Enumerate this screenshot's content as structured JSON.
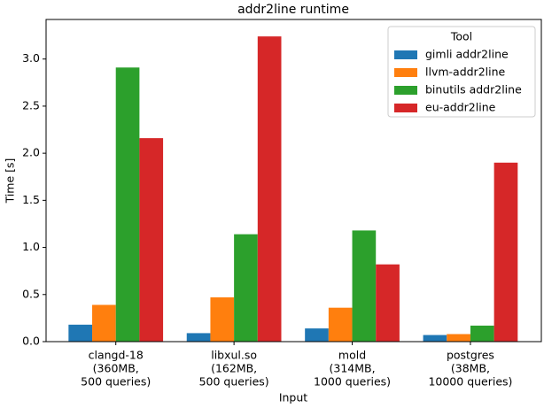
{
  "chart_data": {
    "type": "bar",
    "title": "addr2line runtime",
    "x_label": "Input",
    "y_label": "Time [s]",
    "categories": [
      [
        "clangd-18",
        "(360MB,",
        "500 queries)"
      ],
      [
        "libxul.so",
        "(162MB,",
        "500 queries)"
      ],
      [
        "mold",
        "(314MB,",
        "1000 queries)"
      ],
      [
        "postgres",
        "(38MB,",
        "10000 queries)"
      ]
    ],
    "series": [
      {
        "name": "gimli addr2line",
        "color": "#1f77b4",
        "values": [
          0.18,
          0.09,
          0.14,
          0.07
        ]
      },
      {
        "name": "llvm-addr2line",
        "color": "#ff7f0e",
        "values": [
          0.39,
          0.47,
          0.36,
          0.08
        ]
      },
      {
        "name": "binutils addr2line",
        "color": "#2ca02c",
        "values": [
          2.91,
          1.14,
          1.18,
          0.17
        ]
      },
      {
        "name": "eu-addr2line",
        "color": "#d62728",
        "values": [
          2.16,
          3.24,
          0.82,
          1.9
        ]
      }
    ],
    "legend_title": "Tool",
    "legend_loc": "upper right",
    "ylim": [
      0,
      3.42
    ],
    "yticks": [
      {
        "value": 0,
        "label": "0.0"
      },
      0.5,
      {
        "value": 1,
        "label": "1.0"
      },
      1.5,
      {
        "value": 2,
        "label": "2.0"
      },
      2.5,
      {
        "value": 3,
        "label": "3.0"
      }
    ]
  }
}
